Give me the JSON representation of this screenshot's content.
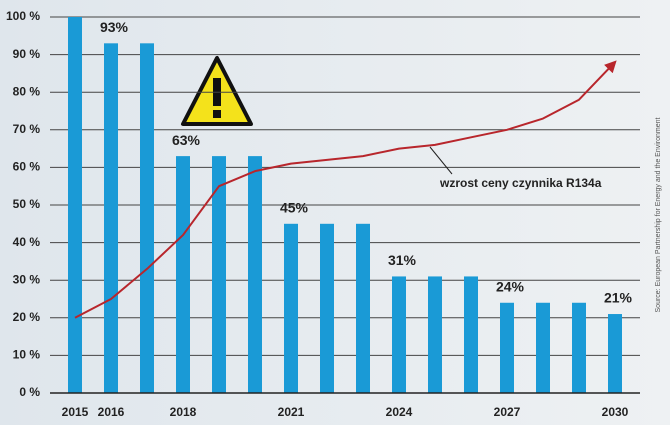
{
  "chart_data": {
    "type": "bar",
    "categories": [
      "2015",
      "2016",
      null,
      "2018",
      null,
      null,
      "2021",
      null,
      null,
      "2024",
      null,
      null,
      "2027",
      null,
      null,
      "2030"
    ],
    "series": [
      {
        "type": "bar",
        "color": "#1a9ad6",
        "values": [
          100,
          93,
          93,
          63,
          63,
          63,
          45,
          45,
          45,
          31,
          31,
          31,
          24,
          24,
          24,
          21
        ],
        "value_labels": [
          null,
          "93%",
          null,
          "63%",
          null,
          null,
          "45%",
          null,
          null,
          "31%",
          null,
          null,
          "24%",
          null,
          null,
          "21%"
        ]
      },
      {
        "type": "line",
        "name": "wzrost ceny czynnika R134a",
        "color": "#b8262c",
        "values": [
          20,
          25,
          33,
          42,
          55,
          59,
          61,
          62,
          63,
          65,
          66,
          68,
          70,
          73,
          78,
          88
        ]
      }
    ],
    "ylim": [
      0,
      100
    ],
    "yticks": [
      {
        "value": 0,
        "label": "0 %"
      },
      {
        "value": 10,
        "label": "10 %"
      },
      {
        "value": 20,
        "label": "20 %"
      },
      {
        "value": 30,
        "label": "30 %"
      },
      {
        "value": 40,
        "label": "40 %"
      },
      {
        "value": 50,
        "label": "50 %"
      },
      {
        "value": 60,
        "label": "60 %"
      },
      {
        "value": 70,
        "label": "70 %"
      },
      {
        "value": 80,
        "label": "80 %"
      },
      {
        "value": 90,
        "label": "90 %"
      },
      {
        "value": 100,
        "label": "100 %"
      }
    ],
    "grid": true,
    "source": "Source: European Partnership for Energy and the Environment"
  }
}
